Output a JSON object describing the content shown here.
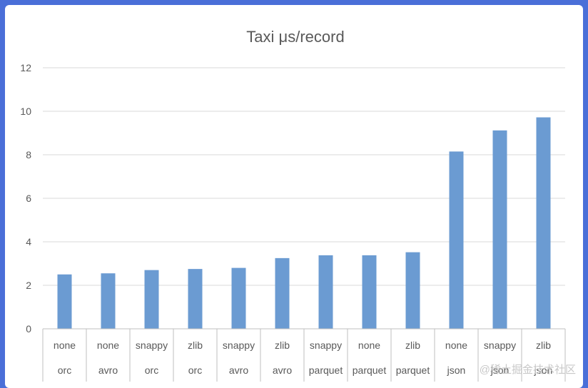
{
  "chart_data": {
    "type": "bar",
    "title": "Taxi μs/record",
    "categories": [
      [
        "none",
        "orc"
      ],
      [
        "none",
        "avro"
      ],
      [
        "snappy",
        "orc"
      ],
      [
        "zlib",
        "orc"
      ],
      [
        "snappy",
        "avro"
      ],
      [
        "zlib",
        "avro"
      ],
      [
        "snappy",
        "parquet"
      ],
      [
        "none",
        "parquet"
      ],
      [
        "zlib",
        "parquet"
      ],
      [
        "none",
        "json"
      ],
      [
        "snappy",
        "json"
      ],
      [
        "zlib",
        "json"
      ]
    ],
    "values": [
      2.5,
      2.55,
      2.7,
      2.75,
      2.8,
      3.25,
      3.38,
      3.38,
      3.52,
      8.15,
      9.12,
      9.72
    ],
    "ylim": [
      0,
      12
    ],
    "yticks": [
      0,
      2,
      4,
      6,
      8,
      10,
      12
    ],
    "grid": true,
    "bar_color": "#6b9bd2",
    "grid_color": "#d9d9d9"
  },
  "watermark": "@稀土掘金技术社区"
}
